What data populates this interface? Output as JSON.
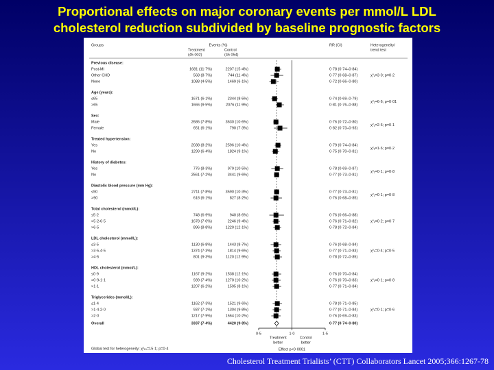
{
  "chart_data": {
    "type": "forest",
    "title": [
      "Proportional effects on major coronary events per mmol/L LDL",
      "cholesterol reduction subdivided by baseline prognostic factors"
    ],
    "headers": {
      "groups": "Groups",
      "events": "Events (%)",
      "treatment": "Treatment",
      "treatment_n": "(45 002)",
      "control": "Control",
      "control_n": "(45 054)",
      "rr": "RR (CI)",
      "het": [
        "Heterogeneity/",
        "trend test"
      ]
    },
    "groups": [
      {
        "name": "Previous disease:",
        "heterogeneity": "χ²₁=3·0; p=0·2",
        "rows": [
          {
            "label": "Post-MI",
            "treatment": "1681 (11·7%)",
            "control": "2207 (15·4%)",
            "rr": 0.78,
            "lo": 0.74,
            "hi": 0.84,
            "rr_label": "0·78 (0·74–0·84)"
          },
          {
            "label": "Other CHD",
            "treatment": "568 (8·7%)",
            "control": "744 (11·4%)",
            "rr": 0.77,
            "lo": 0.68,
            "hi": 0.87,
            "rr_label": "0·77 (0·68–0·87)"
          },
          {
            "label": "None",
            "treatment": "1088 (4·5%)",
            "control": "1469 (6·1%)",
            "rr": 0.72,
            "lo": 0.66,
            "hi": 0.8,
            "rr_label": "0·72 (0·66–0·80)"
          }
        ]
      },
      {
        "name": "Age (years):",
        "heterogeneity": "χ²₁=6·6; p=0·01",
        "rows": [
          {
            "label": "≤65",
            "treatment": "1671 (6·1%)",
            "control": "2344 (8·5%)",
            "rr": 0.74,
            "lo": 0.69,
            "hi": 0.79,
            "rr_label": "0·74 (0·69–0·79)"
          },
          {
            "label": ">65",
            "treatment": "1666 (9·5%)",
            "control": "2076 (11·9%)",
            "rr": 0.81,
            "lo": 0.76,
            "hi": 0.88,
            "rr_label": "0·81 (0·76–0·88)"
          }
        ]
      },
      {
        "name": "Sex:",
        "heterogeneity": "χ²₁=2·6; p=0·1",
        "rows": [
          {
            "label": "Male",
            "treatment": "2686 (7·8%)",
            "control": "3630 (10·6%)",
            "rr": 0.76,
            "lo": 0.72,
            "hi": 0.8,
            "rr_label": "0·76 (0·72–0·80)"
          },
          {
            "label": "Female",
            "treatment": "651 (6·1%)",
            "control": "790 (7·3%)",
            "rr": 0.82,
            "lo": 0.73,
            "hi": 0.93,
            "rr_label": "0·82 (0·73–0·93)"
          }
        ]
      },
      {
        "name": "Treated hypertension:",
        "heterogeneity": "χ²₁=1·6; p=0·2",
        "rows": [
          {
            "label": "Yes",
            "treatment": "2038 (8·2%)",
            "control": "2596 (10·4%)",
            "rr": 0.79,
            "lo": 0.74,
            "hi": 0.84,
            "rr_label": "0·79 (0·74–0·84)"
          },
          {
            "label": "No",
            "treatment": "1299 (6·4%)",
            "control": "1824 (9·1%)",
            "rr": 0.75,
            "lo": 0.7,
            "hi": 0.81,
            "rr_label": "0·75 (0·70–0·81)"
          }
        ]
      },
      {
        "name": "History of diabetes:",
        "heterogeneity": "χ²₁=0·1; p=0·8",
        "rows": [
          {
            "label": "Yes",
            "treatment": "776 (8·3%)",
            "control": "979 (10·5%)",
            "rr": 0.78,
            "lo": 0.69,
            "hi": 0.87,
            "rr_label": "0·78 (0·69–0·87)"
          },
          {
            "label": "No",
            "treatment": "2561 (7·2%)",
            "control": "3441 (9·6%)",
            "rr": 0.77,
            "lo": 0.73,
            "hi": 0.81,
            "rr_label": "0·77 (0·73–0·81)"
          }
        ]
      },
      {
        "name": "Diastolic blood pressure (mm Hg):",
        "heterogeneity": "χ²₁=0·1; p=0·8",
        "rows": [
          {
            "label": "≤90",
            "treatment": "2711 (7·8%)",
            "control": "3590 (10·3%)",
            "rr": 0.77,
            "lo": 0.73,
            "hi": 0.81,
            "rr_label": "0·77 (0·73–0·81)"
          },
          {
            "label": ">90",
            "treatment": "618 (6·1%)",
            "control": "827 (8·2%)",
            "rr": 0.76,
            "lo": 0.68,
            "hi": 0.85,
            "rr_label": "0·76 (0·68–0·85)"
          }
        ]
      },
      {
        "name": "Total cholesterol (mmol/L):",
        "heterogeneity": "χ²₁=0·2; p=0·7",
        "rows": [
          {
            "label": "≤5·2",
            "treatment": "748 (6·9%)",
            "control": "940 (8·6%)",
            "rr": 0.76,
            "lo": 0.66,
            "hi": 0.88,
            "rr_label": "0·76 (0·66–0·88)"
          },
          {
            "label": ">5·2-6·5",
            "treatment": "1678 (7·0%)",
            "control": "2246 (9·4%)",
            "rr": 0.76,
            "lo": 0.71,
            "hi": 0.82,
            "rr_label": "0·76 (0·71–0·82)"
          },
          {
            "label": ">6·5",
            "treatment": "896 (8·8%)",
            "control": "1220 (12·1%)",
            "rr": 0.78,
            "lo": 0.72,
            "hi": 0.84,
            "rr_label": "0·78 (0·72–0·84)"
          }
        ]
      },
      {
        "name": "LDL cholesterol (mmol/L):",
        "heterogeneity": "χ²₁=0·4; p=0·5",
        "rows": [
          {
            "label": "≤3·5",
            "treatment": "1130 (6·8%)",
            "control": "1443 (8·7%)",
            "rr": 0.76,
            "lo": 0.68,
            "hi": 0.84,
            "rr_label": "0·76 (0·68–0·84)"
          },
          {
            "label": ">3·5-4·5",
            "treatment": "1374 (7·3%)",
            "control": "1814 (9·6%)",
            "rr": 0.77,
            "lo": 0.71,
            "hi": 0.83,
            "rr_label": "0·77 (0·71–0·83)"
          },
          {
            "label": ">4·5",
            "treatment": "801 (9·3%)",
            "control": "1120 (12·9%)",
            "rr": 0.78,
            "lo": 0.72,
            "hi": 0.85,
            "rr_label": "0·78 (0·72–0·85)"
          }
        ]
      },
      {
        "name": "HDL cholesterol (mmol/L):",
        "heterogeneity": "χ²₁=0·1; p=0·8",
        "rows": [
          {
            "label": "≤0·9",
            "treatment": "1167 (9·2%)",
            "control": "1538 (12·1%)",
            "rr": 0.76,
            "lo": 0.7,
            "hi": 0.84,
            "rr_label": "0·76 (0·70–0·84)"
          },
          {
            "label": ">0·9-1·1",
            "treatment": "939 (7·4%)",
            "control": "1270 (10·2%)",
            "rr": 0.76,
            "lo": 0.7,
            "hi": 0.83,
            "rr_label": "0·76 (0·70–0·83)"
          },
          {
            "label": ">1·1",
            "treatment": "1207 (6·2%)",
            "control": "1595 (8·1%)",
            "rr": 0.77,
            "lo": 0.71,
            "hi": 0.84,
            "rr_label": "0·77 (0·71–0·84)"
          }
        ]
      },
      {
        "name": "Triglycerides (mmol/L):",
        "heterogeneity": "χ²₁=0·1; p=0·6",
        "rows": [
          {
            "label": "≤1·4",
            "treatment": "1162 (7·3%)",
            "control": "1521 (9·6%)",
            "rr": 0.78,
            "lo": 0.71,
            "hi": 0.85,
            "rr_label": "0·78 (0·71–0·85)"
          },
          {
            "label": ">1·4-2·0",
            "treatment": "937 (7·1%)",
            "control": "1304 (9·8%)",
            "rr": 0.77,
            "lo": 0.71,
            "hi": 0.84,
            "rr_label": "0·77 (0·71–0·84)"
          },
          {
            "label": ">2·0",
            "treatment": "1217 (7·9%)",
            "control": "1564 (10·2%)",
            "rr": 0.76,
            "lo": 0.69,
            "hi": 0.83,
            "rr_label": "0·76 (0·69–0·83)"
          }
        ]
      }
    ],
    "overall": {
      "label": "Overall",
      "treatment": "3337 (7·4%)",
      "control": "4420 (9·8%)",
      "rr": 0.77,
      "lo": 0.74,
      "hi": 0.8,
      "rr_label": "0·77 (0·74–0·80)"
    },
    "xlim": [
      0.5,
      1.5
    ],
    "xticks": [
      {
        "value": 0.5,
        "label": "0·5"
      },
      {
        "value": 1.0,
        "label": "1·0"
      },
      {
        "value": 1.5,
        "label": "1·5"
      }
    ],
    "x_left_label": [
      "Treatment",
      "better"
    ],
    "x_right_label": [
      "Control",
      "better"
    ],
    "effect": "Effect p<0·0001",
    "global_test": "Global test for heterogeneity: χ²₁₅=15·1; p=0·4",
    "source": "Cholesterol Treatment Trialists’ (CTT) Collaborators  Lancet 2005;366:1267-78"
  }
}
